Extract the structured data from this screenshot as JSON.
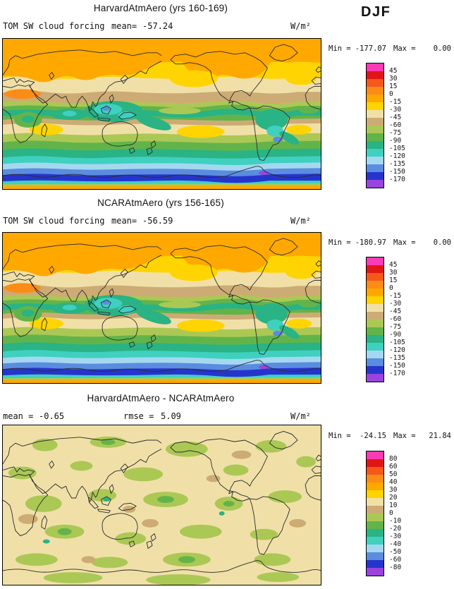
{
  "season": "DJF",
  "palette": [
    "#fb3bb4",
    "#df1616",
    "#f4591b",
    "#fb8c17",
    "#ffa800",
    "#ffd400",
    "#f0e0a8",
    "#cdab74",
    "#abc855",
    "#62b44a",
    "#2ab384",
    "#3fd0c0",
    "#a5d8f0",
    "#5a8ce0",
    "#2734cb",
    "#9a44dd"
  ],
  "panels": [
    {
      "title": "HarvardAtmAero (yrs 160-169)",
      "field_label": "TOM SW cloud forcing",
      "mean_label": "mean=",
      "mean_value": "-57.24",
      "units": "W/m²",
      "min_label": "Min =",
      "min_value": "-177.07",
      "max_label": "Max =",
      "max_value": "0.00",
      "colorbar_labels": [
        "45",
        "30",
        "15",
        "0",
        "-15",
        "-30",
        "-45",
        "-60",
        "-75",
        "-90",
        "-105",
        "-120",
        "-135",
        "-150",
        "-170"
      ]
    },
    {
      "title": "NCARAtmAero (yrs 156-165)",
      "field_label": "TOM SW cloud forcing",
      "mean_label": "mean=",
      "mean_value": "-56.59",
      "units": "W/m²",
      "min_label": "Min =",
      "min_value": "-180.97",
      "max_label": "Max =",
      "max_value": "0.00",
      "colorbar_labels": [
        "45",
        "30",
        "15",
        "0",
        "-15",
        "-30",
        "-45",
        "-60",
        "-75",
        "-90",
        "-105",
        "-120",
        "-135",
        "-150",
        "-170"
      ]
    },
    {
      "title": "HarvardAtmAero - NCARAtmAero",
      "mean_label": "mean =",
      "mean_value": "-0.65",
      "rmse_label": "rmse =",
      "rmse_value": "5.09",
      "units": "W/m²",
      "min_label": "Min =",
      "min_value": "-24.15",
      "max_label": "Max =",
      "max_value": "21.84",
      "colorbar_labels": [
        "80",
        "60",
        "50",
        "40",
        "30",
        "20",
        "10",
        "0",
        "-10",
        "-20",
        "-30",
        "-40",
        "-50",
        "-60",
        "-80"
      ]
    }
  ],
  "chart_data": [
    {
      "type": "heatmap",
      "panel": "top",
      "title": "HarvardAtmAero (yrs 160-169)",
      "variable": "TOM SW cloud forcing",
      "season": "DJF",
      "units": "W/m²",
      "domain": "global longitude-latitude map with filled contours and coastlines",
      "stats": {
        "mean": -57.24,
        "min": -177.07,
        "max": 0.0
      },
      "contour_levels": [
        45,
        30,
        15,
        0,
        -15,
        -30,
        -45,
        -60,
        -75,
        -90,
        -105,
        -120,
        -135,
        -150,
        -170
      ],
      "legend_position": "right vertical colorbar",
      "pattern": "near-zero (orange) over winter northern hemisphere, strongly negative (green/teal/blue, -75 to -170) over tropical convection regions and southern ocean storm track"
    },
    {
      "type": "heatmap",
      "panel": "middle",
      "title": "NCARAtmAero (yrs 156-165)",
      "variable": "TOM SW cloud forcing",
      "season": "DJF",
      "units": "W/m²",
      "domain": "global longitude-latitude map with filled contours and coastlines",
      "stats": {
        "mean": -56.59,
        "min": -180.97,
        "max": 0.0
      },
      "contour_levels": [
        45,
        30,
        15,
        0,
        -15,
        -30,
        -45,
        -60,
        -75,
        -90,
        -105,
        -120,
        -135,
        -150,
        -170
      ],
      "legend_position": "right vertical colorbar",
      "pattern": "same zonal structure as top panel: orange high northern latitudes, teal/blue bands in tropics and southern ocean"
    },
    {
      "type": "heatmap",
      "panel": "bottom",
      "title": "HarvardAtmAero - NCARAtmAero",
      "variable": "TOM SW cloud forcing difference",
      "season": "DJF",
      "units": "W/m²",
      "domain": "global longitude-latitude map with filled contours and coastlines",
      "stats": {
        "mean": -0.65,
        "rmse": 5.09,
        "min": -24.15,
        "max": 21.84
      },
      "contour_levels": [
        80,
        60,
        50,
        40,
        30,
        20,
        10,
        0,
        -10,
        -20,
        -30,
        -40,
        -50,
        -60,
        -80
      ],
      "legend_position": "right vertical colorbar",
      "pattern": "mostly small differences: pale beige/tan (0 to +20) background with scattered pale-green to green patches (0 to -20) and a few teal specks"
    }
  ]
}
